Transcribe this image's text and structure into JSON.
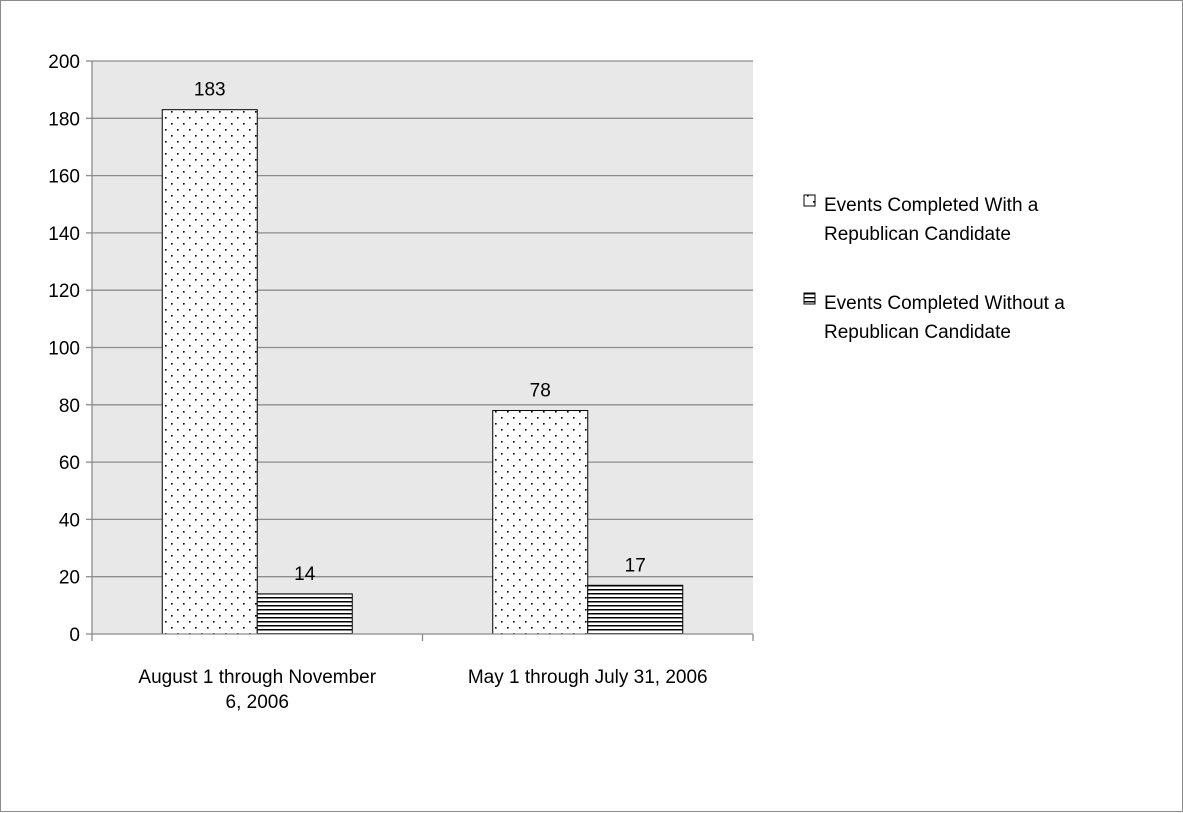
{
  "chart_data": {
    "type": "bar",
    "title": "",
    "xlabel": "",
    "ylabel": "",
    "categories": [
      [
        "August 1 through November",
        "6, 2006"
      ],
      [
        "May 1 through July 31, 2006"
      ]
    ],
    "series": [
      {
        "name": "Events Completed With a Republican Candidate",
        "name_lines": [
          "Events Completed With a",
          "Republican Candidate"
        ],
        "values": [
          183,
          78
        ],
        "pattern": "dots"
      },
      {
        "name": "Events Completed Without a Republican Candidate",
        "name_lines": [
          "Events Completed Without a",
          "Republican Candidate"
        ],
        "values": [
          14,
          17
        ],
        "pattern": "horizontal-stripes"
      }
    ],
    "ylim": [
      0,
      200
    ],
    "yticks": [
      0,
      20,
      40,
      60,
      80,
      100,
      120,
      140,
      160,
      180,
      200
    ],
    "data_labels": true,
    "grid": true,
    "legend_position": "right",
    "colors": {
      "plot_background": "#e8e8e8",
      "gridline": "#8c8c8c",
      "bar_fill": "#ffffff",
      "bar_stroke": "#000000",
      "pattern": "#000000"
    }
  }
}
